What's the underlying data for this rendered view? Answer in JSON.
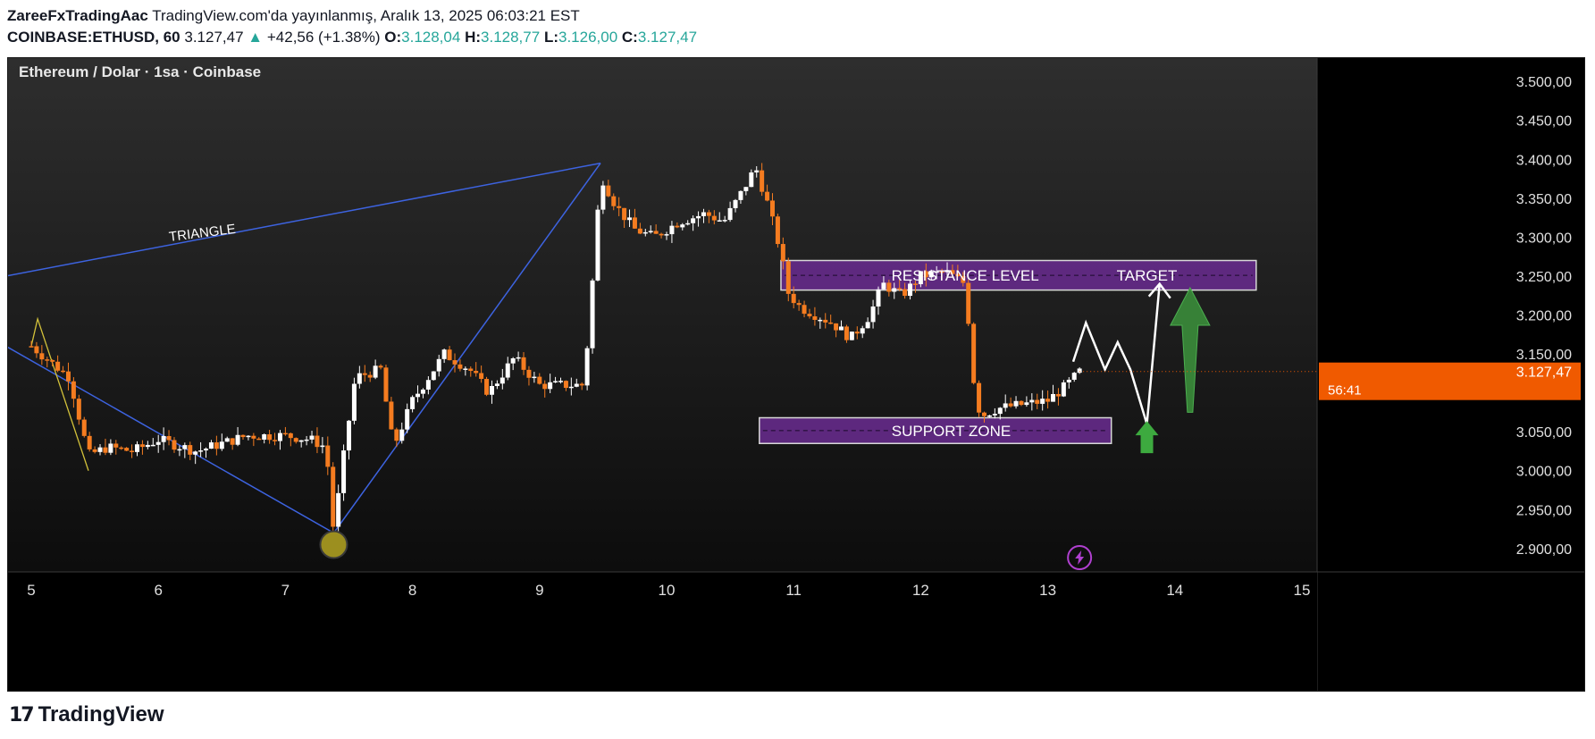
{
  "header": {
    "author": "ZareeFxTradingAac",
    "published": "TradingView.com'da yayınlanmış, Aralık 13, 2025 06:03:21 EST",
    "symbol": "COINBASE:ETHUSD, 60",
    "price": "3.127,47",
    "change": "+42,56 (+1.38%)",
    "o_label": "O:",
    "o_value": "3.128,04",
    "h_label": "H:",
    "h_value": "3.128,77",
    "l_label": "L:",
    "l_value": "3.126,00",
    "c_label": "C:",
    "c_value": "3.127,47"
  },
  "footer": {
    "brand": "TradingView",
    "mark": "17"
  },
  "chart_data": {
    "type": "candlestick",
    "title": "Ethereum / Dolar · 1sa · Coinbase",
    "x_ticks": [
      "5",
      "6",
      "7",
      "8",
      "9",
      "10",
      "11",
      "12",
      "13",
      "14",
      "15"
    ],
    "y_ticks": [
      "3.500,00",
      "3.450,00",
      "3.400,00",
      "3.350,00",
      "3.300,00",
      "3.250,00",
      "3.200,00",
      "3.150,00",
      "3.100,00",
      "3.050,00",
      "3.000,00",
      "2.950,00",
      "2.900,00"
    ],
    "ylim": [
      2870,
      3530
    ],
    "last_price_label": "3.127,47",
    "countdown_label": "56:41",
    "background": "#000000",
    "up_color": "#ffffff",
    "down_color": "#f57c20",
    "price_path": [
      [
        5.0,
        3160
      ],
      [
        5.3,
        3120
      ],
      [
        5.45,
        3020
      ],
      [
        5.6,
        3030
      ],
      [
        5.8,
        3025
      ],
      [
        6.0,
        3040
      ],
      [
        6.3,
        3025
      ],
      [
        6.5,
        3035
      ],
      [
        6.7,
        3045
      ],
      [
        7.0,
        3045
      ],
      [
        7.2,
        3040
      ],
      [
        7.32,
        3030
      ],
      [
        7.38,
        2920
      ],
      [
        7.45,
        3010
      ],
      [
        7.55,
        3120
      ],
      [
        7.75,
        3130
      ],
      [
        7.85,
        3030
      ],
      [
        8.0,
        3090
      ],
      [
        8.25,
        3150
      ],
      [
        8.45,
        3130
      ],
      [
        8.6,
        3100
      ],
      [
        8.8,
        3145
      ],
      [
        9.0,
        3110
      ],
      [
        9.2,
        3110
      ],
      [
        9.35,
        3110
      ],
      [
        9.42,
        3250
      ],
      [
        9.48,
        3380
      ],
      [
        9.6,
        3340
      ],
      [
        9.75,
        3310
      ],
      [
        9.9,
        3300
      ],
      [
        10.1,
        3320
      ],
      [
        10.3,
        3330
      ],
      [
        10.45,
        3320
      ],
      [
        10.6,
        3360
      ],
      [
        10.7,
        3390
      ],
      [
        10.8,
        3340
      ],
      [
        10.9,
        3280
      ],
      [
        10.95,
        3230
      ],
      [
        11.05,
        3210
      ],
      [
        11.3,
        3190
      ],
      [
        11.45,
        3170
      ],
      [
        11.6,
        3200
      ],
      [
        11.7,
        3240
      ],
      [
        11.85,
        3225
      ],
      [
        12.0,
        3250
      ],
      [
        12.2,
        3255
      ],
      [
        12.35,
        3240
      ],
      [
        12.42,
        3110
      ],
      [
        12.47,
        3070
      ],
      [
        12.6,
        3080
      ],
      [
        12.8,
        3085
      ],
      [
        13.0,
        3090
      ],
      [
        13.15,
        3110
      ],
      [
        13.25,
        3127
      ]
    ],
    "support_zone": {
      "label": "SUPPORT ZONE",
      "low": 3035,
      "high": 3068,
      "x0": 10.73,
      "x1": 13.5,
      "color": "#6a2c91"
    },
    "resistance_zone": {
      "label": "RESISTANCE LEVEL",
      "low": 3232,
      "high": 3270,
      "x0": 10.9,
      "x1": 14.64,
      "color": "#6a2c91"
    },
    "target_label": "TARGET",
    "triangle_label": "TRIANGLE",
    "projection_path": [
      [
        13.2,
        3140
      ],
      [
        13.3,
        3190
      ],
      [
        13.45,
        3130
      ],
      [
        13.55,
        3165
      ],
      [
        13.65,
        3130
      ],
      [
        13.78,
        3060
      ],
      [
        13.88,
        3240
      ]
    ],
    "triangle_lines": [
      [
        [
          4.8,
          3250
        ],
        [
          9.48,
          3395
        ]
      ],
      [
        [
          4.8,
          3160
        ],
        [
          7.38,
          2920
        ],
        [
          9.48,
          3395
        ]
      ]
    ],
    "small_triangle": [
      [
        5.0,
        3165
      ],
      [
        5.45,
        3000
      ]
    ],
    "low_marker": {
      "x": 7.38,
      "y": 2905
    },
    "green_up_arrow": {
      "x": 13.78,
      "y": 3050
    },
    "big_green_arrow": {
      "x": 14.12,
      "y_from": 3075,
      "y_to": 3235
    }
  }
}
